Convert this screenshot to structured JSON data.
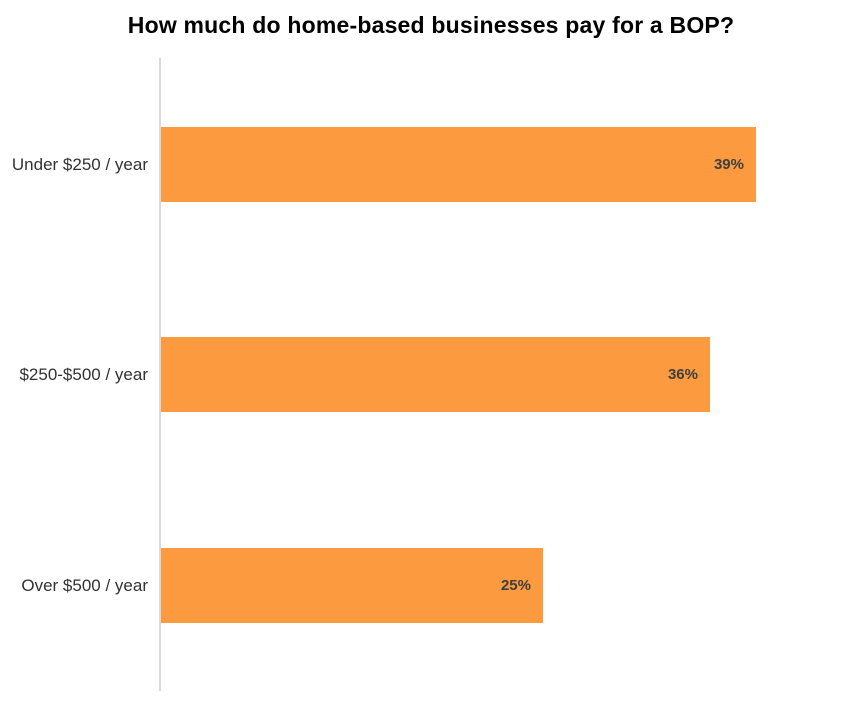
{
  "title": "How much do home-based businesses pay for a BOP?",
  "colors": {
    "bar": "#fb9a3f",
    "axis_line": "#d9d9d9",
    "title_text": "#000000",
    "category_text": "#333333",
    "value_text": "#3f3f3f",
    "background": "#ffffff"
  },
  "chart_data": {
    "type": "bar",
    "orientation": "horizontal",
    "title": "How much do home-based businesses pay for a BOP?",
    "categories": [
      "Under $250 / year",
      "$250-$500 / year",
      "Over $500 / year"
    ],
    "values": [
      39,
      36,
      25
    ],
    "value_labels": [
      "39%",
      "36%",
      "25%"
    ],
    "xlabel": "",
    "ylabel": "",
    "xlim": [
      0,
      46
    ],
    "grid": false,
    "legend": false,
    "value_label_position": "inside-end"
  }
}
